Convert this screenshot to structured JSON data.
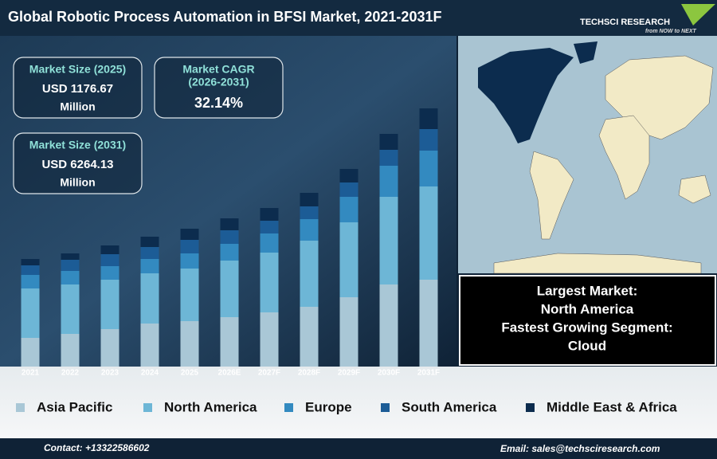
{
  "header": {
    "title": "Global Robotic Process Automation in BFSI Market, 2021-2031F",
    "logo": "TECHSCI RESEARCH",
    "tagline": "from NOW to NEXT"
  },
  "stats": [
    {
      "lines": [
        "Market Size (2025)",
        "USD 1176.67",
        "Million"
      ]
    },
    {
      "lines": [
        "Market CAGR",
        "(2026-2031)",
        "32.14%"
      ]
    },
    {
      "lines": [
        "Market Size (2031)",
        "USD 6264.13",
        "Million"
      ]
    }
  ],
  "highlights": [
    "Largest Market:",
    "North America",
    "Fastest Growing Segment:",
    "Cloud"
  ],
  "chart_data": {
    "type": "stacked_bar",
    "categories": [
      "2021",
      "2022",
      "2023",
      "2024",
      "2025",
      "2026E",
      "2027F",
      "2028F",
      "2029F",
      "2030F",
      "2031F"
    ],
    "series": [
      {
        "name": "Asia Pacific",
        "color": "#a9c7d6",
        "values": [
          36,
          41,
          47,
          54,
          57,
          62,
          68,
          75,
          87,
          103,
          109
        ]
      },
      {
        "name": "North America",
        "color": "#6db6d6",
        "values": [
          62,
          62,
          62,
          63,
          66,
          71,
          75,
          83,
          94,
          110,
          117
        ]
      },
      {
        "name": "Europe",
        "color": "#338ac0",
        "values": [
          17,
          17,
          17,
          18,
          19,
          21,
          24,
          27,
          32,
          39,
          45
        ]
      },
      {
        "name": "South America",
        "color": "#1c5c96",
        "values": [
          12,
          14,
          15,
          15,
          17,
          17,
          16,
          16,
          18,
          20,
          27
        ]
      },
      {
        "name": "Middle East & Africa",
        "color": "#0c2c4e",
        "values": [
          8,
          8,
          11,
          13,
          14,
          15,
          16,
          17,
          17,
          20,
          26
        ]
      }
    ],
    "ylim": [
      0,
      340
    ]
  },
  "footer": {
    "contact": "Contact: +13322586602",
    "email": "Email: sales@techsciresearch.com"
  }
}
